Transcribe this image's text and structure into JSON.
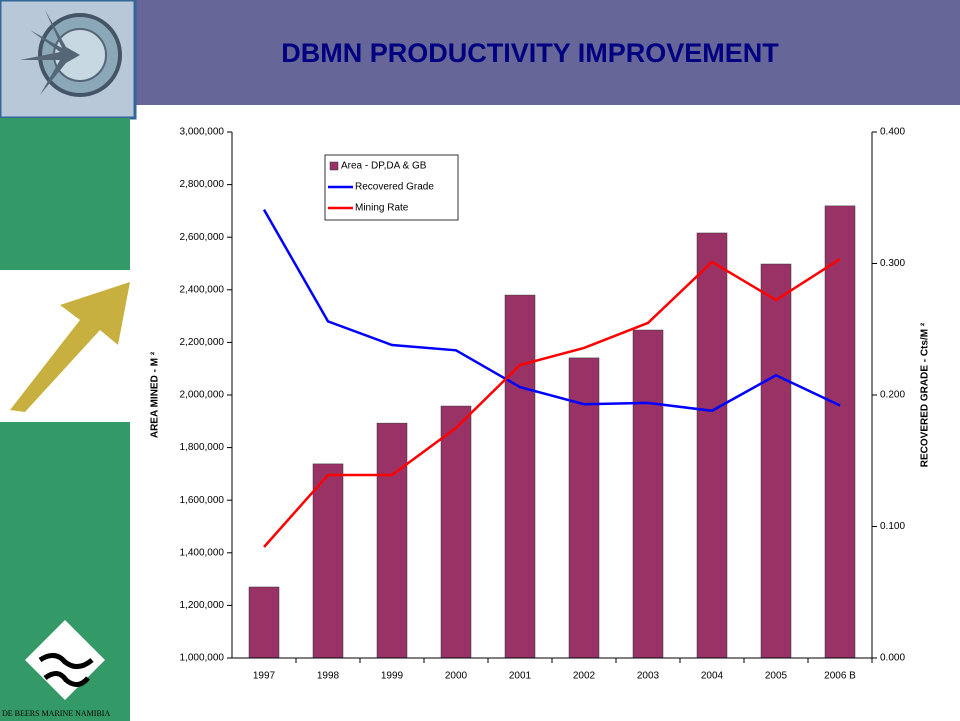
{
  "footer_text": "DE BEERS MARINE NAMIBIA",
  "chart_data": {
    "type": "bar",
    "title": "DBMN PRODUCTIVITY IMPROVEMENT",
    "y_label": "AREA MINED - M ²",
    "y2_label": "RECOVERED GRADE - Cts/M ²",
    "categories": [
      "1997",
      "1998",
      "1999",
      "2000",
      "2001",
      "2002",
      "2003",
      "2004",
      "2005",
      "2006 B"
    ],
    "series": [
      {
        "name": "Area - DP,DA & GB",
        "type": "bar",
        "color": "#993366",
        "axis": "y",
        "values": [
          1270000,
          1738000,
          1893000,
          1958000,
          2380000,
          2141000,
          2247000,
          2616000,
          2498000,
          2719000
        ]
      },
      {
        "name": "Recovered Grade",
        "type": "line",
        "color": "#0000ff",
        "axis": "y2",
        "values": [
          0.341,
          0.256,
          0.238,
          0.234,
          0.206,
          0.193,
          0.194,
          0.188,
          0.215,
          0.192
        ]
      },
      {
        "name": "Mining Rate",
        "type": "line",
        "color": "#ff0000",
        "axis": "y",
        "values": [
          1422000,
          1696000,
          1696000,
          1875000,
          2114000,
          2179000,
          2274000,
          2506000,
          2361000,
          2517000
        ]
      }
    ],
    "ylim": [
      1000000,
      3000000
    ],
    "yticks": [
      {
        "value": 1000000,
        "label": "1,000,000"
      },
      {
        "value": 1200000,
        "label": "1,200,000"
      },
      {
        "value": 1400000,
        "label": "1,400,000"
      },
      {
        "value": 1600000,
        "label": "1,600,000"
      },
      {
        "value": 1800000,
        "label": "1,800,000"
      },
      {
        "value": 2000000,
        "label": "2,000,000"
      },
      {
        "value": 2200000,
        "label": "2,200,000"
      },
      {
        "value": 2400000,
        "label": "2,400,000"
      },
      {
        "value": 2600000,
        "label": "2,600,000"
      },
      {
        "value": 2800000,
        "label": "2,800,000"
      },
      {
        "value": 3000000,
        "label": "3,000,000"
      }
    ],
    "y2lim": [
      0,
      0.4
    ],
    "y2ticks": [
      {
        "value": 0,
        "label": "0.000"
      },
      {
        "value": 0.1,
        "label": "0.100"
      },
      {
        "value": 0.2,
        "label": "0.200"
      },
      {
        "value": 0.3,
        "label": "0.300"
      },
      {
        "value": 0.4,
        "label": "0.400"
      }
    ],
    "grid": false,
    "legend": "top-left"
  }
}
